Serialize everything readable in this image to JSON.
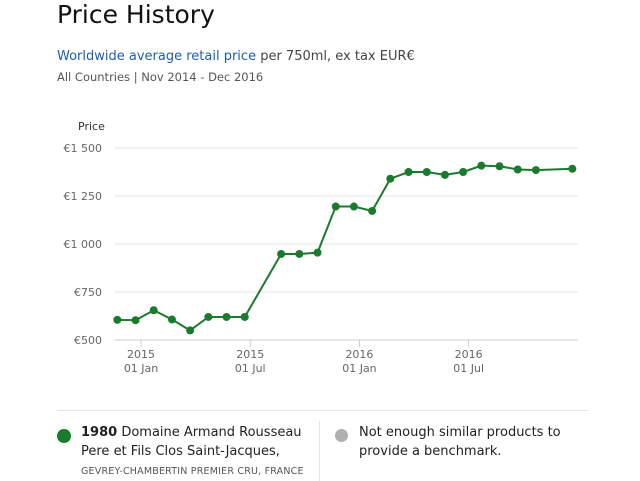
{
  "header": {
    "title": "Price History",
    "subtitle_link": "Worldwide average retail price",
    "subtitle_rest": " per 750ml, ex tax EUR€",
    "meta": "All Countries | Nov 2014 - Dec 2016"
  },
  "chart_data": {
    "type": "line",
    "ylabel": "Price",
    "ylim": [
      500,
      1500
    ],
    "yticks": [
      {
        "v": 1500,
        "label": "€1 500"
      },
      {
        "v": 1250,
        "label": "€1 250"
      },
      {
        "v": 1000,
        "label": "€1 000"
      },
      {
        "v": 750,
        "label": "€750"
      },
      {
        "v": 500,
        "label": "€500"
      }
    ],
    "xticks": [
      {
        "m": 2,
        "year": "2015",
        "label": "01 Jan"
      },
      {
        "m": 8,
        "year": "2015",
        "label": "01 Jul"
      },
      {
        "m": 14,
        "year": "2016",
        "label": "01 Jan"
      },
      {
        "m": 20,
        "year": "2016",
        "label": "01 Jul"
      }
    ],
    "x_unit": "months since Nov 2014",
    "series": [
      {
        "name": "1980 Domaine Armand Rousseau Pere et Fils Clos Saint-Jacques",
        "color": "#1a7a2e",
        "x": [
          0,
          1,
          2,
          3,
          4,
          5,
          6,
          7,
          9,
          10,
          11,
          12,
          13,
          14,
          15,
          16,
          17,
          18,
          19,
          20,
          21,
          22,
          23,
          25
        ],
        "values": [
          605,
          603,
          655,
          607,
          550,
          620,
          620,
          620,
          948,
          948,
          955,
          1195,
          1195,
          1172,
          1340,
          1375,
          1375,
          1360,
          1375,
          1408,
          1405,
          1388,
          1385,
          1392
        ]
      }
    ]
  },
  "legend": {
    "year": "1980",
    "name": " Domaine Armand Rousseau Pere et Fils Clos Saint-Jacques,",
    "region": "GEVREY-CHAMBERTIN PREMIER CRU, FRANCE",
    "benchmark": "Not enough similar products to provide a benchmark.",
    "benchmark_color": "#b0b0b0"
  }
}
